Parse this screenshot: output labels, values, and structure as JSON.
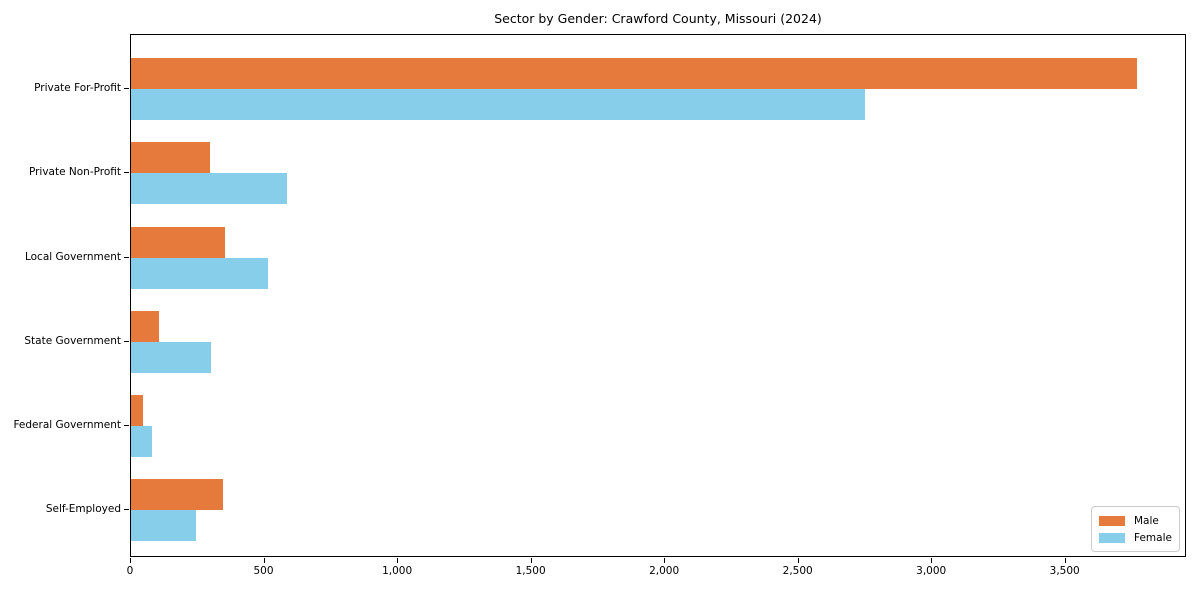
{
  "chart_data": {
    "type": "bar",
    "orientation": "horizontal",
    "title": "Sector by Gender: Crawford County, Missouri (2024)",
    "categories": [
      "Private For-Profit",
      "Private Non-Profit",
      "Local Government",
      "State Government",
      "Federal Government",
      "Self-Employed"
    ],
    "series": [
      {
        "name": "Male",
        "color": "#e6793c",
        "values": [
          3766,
          296,
          352,
          105,
          45,
          344
        ]
      },
      {
        "name": "Female",
        "color": "#87ceeb",
        "values": [
          2748,
          584,
          513,
          300,
          79,
          243
        ]
      }
    ],
    "xlabel": "",
    "ylabel": "",
    "xlim": [
      0,
      3954
    ],
    "xticks": {
      "values": [
        0,
        500,
        1000,
        1500,
        2000,
        2500,
        3000,
        3500
      ],
      "labels": [
        "0",
        "500",
        "1,000",
        "1,500",
        "2,000",
        "2,500",
        "3,000",
        "3,500"
      ]
    },
    "legend": {
      "position": "lower right",
      "entries": [
        "Male",
        "Female"
      ]
    },
    "grid": false,
    "background_color": "#ffffff",
    "spine_color": "#000000"
  }
}
